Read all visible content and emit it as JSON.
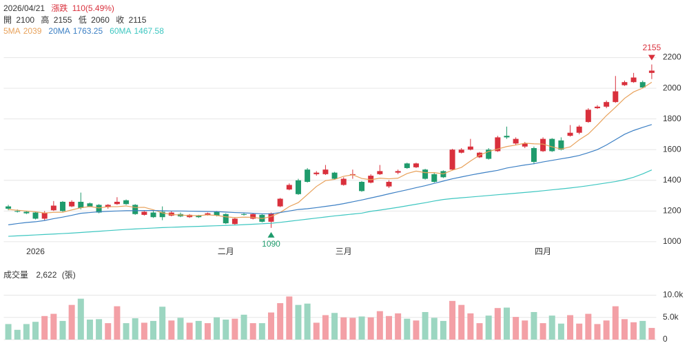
{
  "header": {
    "date": "2026/04/21",
    "change_label": "漲跌",
    "change": "110(5.49%)",
    "ohlc_labels": [
      "開",
      "高",
      "低",
      "收"
    ]
  },
  "chart_data": [
    {
      "type": "candlestick",
      "categories": [
        null,
        null,
        null,
        "2026",
        null,
        null,
        null,
        null,
        null,
        null,
        null,
        null,
        null,
        null,
        null,
        null,
        null,
        null,
        null,
        null,
        null,
        null,
        null,
        null,
        "二月",
        null,
        null,
        null,
        null,
        null,
        null,
        null,
        null,
        null,
        null,
        null,
        null,
        "三月",
        null,
        null,
        null,
        null,
        null,
        null,
        null,
        null,
        null,
        null,
        null,
        null,
        null,
        null,
        null,
        null,
        null,
        null,
        null,
        null,
        null,
        "四月",
        null,
        null,
        null,
        null,
        null,
        null,
        null,
        null,
        null,
        null,
        null,
        null
      ],
      "open": [
        1230,
        1200,
        1195,
        1190,
        1150,
        1205,
        1260,
        1230,
        1260,
        1250,
        1240,
        1225,
        1245,
        1270,
        1240,
        1175,
        1190,
        1195,
        1170,
        1180,
        1160,
        1170,
        1175,
        1195,
        1180,
        1115,
        1180,
        1150,
        1175,
        1130,
        1230,
        1340,
        1400,
        1470,
        1440,
        1440,
        1450,
        1370,
        1435,
        1390,
        1385,
        1440,
        1360,
        1450,
        1510,
        1485,
        1470,
        1440,
        1460,
        1470,
        1580,
        1600,
        1550,
        1600,
        1590,
        1690,
        1640,
        1620,
        1610,
        1590,
        1670,
        1660,
        1690,
        1710,
        1780,
        1870,
        1880,
        1910,
        2020,
        2040,
        2040,
        2100
      ],
      "high": [
        1240,
        1210,
        1200,
        1195,
        1200,
        1265,
        1265,
        1270,
        1320,
        1255,
        1245,
        1245,
        1290,
        1275,
        1245,
        1200,
        1200,
        1230,
        1200,
        1190,
        1180,
        1175,
        1190,
        1200,
        1185,
        1155,
        1190,
        1185,
        1180,
        1190,
        1285,
        1380,
        1410,
        1480,
        1460,
        1500,
        1455,
        1420,
        1470,
        1395,
        1440,
        1500,
        1400,
        1470,
        1515,
        1515,
        1475,
        1450,
        1465,
        1605,
        1610,
        1670,
        1585,
        1610,
        1690,
        1750,
        1680,
        1650,
        1620,
        1680,
        1675,
        1680,
        1760,
        1760,
        1870,
        1890,
        1920,
        2080,
        2050,
        2100,
        2050,
        2155
      ],
      "low": [
        1205,
        1190,
        1180,
        1145,
        1140,
        1200,
        1195,
        1225,
        1210,
        1225,
        1185,
        1215,
        1240,
        1240,
        1175,
        1170,
        1155,
        1140,
        1165,
        1160,
        1155,
        1155,
        1170,
        1165,
        1115,
        1110,
        1170,
        1145,
        1125,
        1090,
        1225,
        1335,
        1305,
        1385,
        1430,
        1435,
        1405,
        1365,
        1410,
        1325,
        1380,
        1435,
        1350,
        1440,
        1475,
        1480,
        1405,
        1385,
        1415,
        1465,
        1575,
        1595,
        1545,
        1535,
        1585,
        1670,
        1630,
        1610,
        1505,
        1585,
        1585,
        1595,
        1685,
        1700,
        1775,
        1865,
        1870,
        1905,
        2015,
        2035,
        2000,
        2060
      ],
      "close": [
        1215,
        1195,
        1185,
        1150,
        1190,
        1235,
        1200,
        1260,
        1220,
        1230,
        1190,
        1240,
        1260,
        1245,
        1180,
        1195,
        1160,
        1160,
        1190,
        1165,
        1175,
        1160,
        1185,
        1170,
        1120,
        1150,
        1175,
        1180,
        1130,
        1185,
        1280,
        1370,
        1310,
        1390,
        1450,
        1470,
        1410,
        1410,
        1440,
        1330,
        1430,
        1460,
        1390,
        1460,
        1480,
        1510,
        1410,
        1390,
        1420,
        1600,
        1600,
        1620,
        1580,
        1540,
        1680,
        1680,
        1670,
        1640,
        1520,
        1670,
        1590,
        1600,
        1710,
        1750,
        1860,
        1880,
        1910,
        1980,
        2040,
        2070,
        2005,
        2115
      ],
      "up_color": "#d9303c",
      "down_color": "#1f9b6c",
      "series": [
        {
          "name": "5MA",
          "color": "#e8a15a",
          "values": [
            1210,
            1205,
            1200,
            1195,
            1187,
            1191,
            1192,
            1207,
            1221,
            1229,
            1220,
            1228,
            1228,
            1233,
            1223,
            1224,
            1208,
            1188,
            1177,
            1174,
            1170,
            1170,
            1175,
            1171,
            1162,
            1157,
            1160,
            1159,
            1151,
            1164,
            1190,
            1229,
            1255,
            1307,
            1360,
            1398,
            1406,
            1426,
            1436,
            1412,
            1404,
            1414,
            1410,
            1414,
            1444,
            1460,
            1450,
            1450,
            1442,
            1466,
            1484,
            1526,
            1564,
            1588,
            1604,
            1620,
            1630,
            1642,
            1638,
            1636,
            1618,
            1604,
            1618,
            1664,
            1702,
            1760,
            1822,
            1876,
            1934,
            1976,
            2001,
            2039
          ]
        },
        {
          "name": "20MA",
          "color": "#3b7fc4",
          "values": [
            1110,
            1118,
            1125,
            1130,
            1138,
            1150,
            1160,
            1172,
            1185,
            1190,
            1195,
            1198,
            1200,
            1202,
            1202,
            1203,
            1203,
            1202,
            1200,
            1200,
            1199,
            1198,
            1197,
            1196,
            1193,
            1190,
            1188,
            1185,
            1182,
            1182,
            1190,
            1200,
            1210,
            1215,
            1222,
            1230,
            1238,
            1248,
            1260,
            1272,
            1285,
            1298,
            1312,
            1325,
            1338,
            1352,
            1365,
            1380,
            1395,
            1410,
            1422,
            1434,
            1445,
            1455,
            1465,
            1480,
            1490,
            1500,
            1508,
            1520,
            1530,
            1540,
            1550,
            1562,
            1580,
            1600,
            1630,
            1665,
            1700,
            1725,
            1745,
            1763.25
          ]
        },
        {
          "name": "60MA",
          "color": "#3cc6c0",
          "values": [
            1035,
            1038,
            1041,
            1044,
            1047,
            1050,
            1053,
            1056,
            1060,
            1064,
            1068,
            1072,
            1076,
            1080,
            1083,
            1086,
            1089,
            1092,
            1094,
            1096,
            1098,
            1100,
            1102,
            1104,
            1106,
            1108,
            1111,
            1114,
            1117,
            1120,
            1126,
            1133,
            1140,
            1147,
            1154,
            1161,
            1168,
            1174,
            1180,
            1186,
            1198,
            1206,
            1215,
            1224,
            1234,
            1244,
            1254,
            1265,
            1275,
            1281,
            1286,
            1291,
            1296,
            1301,
            1306,
            1311,
            1316,
            1321,
            1326,
            1332,
            1338,
            1344,
            1350,
            1357,
            1365,
            1374,
            1383,
            1392,
            1404,
            1420,
            1442,
            1467.58
          ]
        }
      ],
      "annotations": [
        {
          "at": "high",
          "index": 71,
          "color": "#d9303c"
        },
        {
          "at": "low",
          "index": 29,
          "color": "#1f9b6c"
        }
      ],
      "ylim": [
        950,
        2225
      ],
      "yticks": [
        1000,
        1200,
        1400,
        1600,
        1800,
        2000,
        2200
      ],
      "grid": true
    },
    {
      "type": "bar",
      "title": "成交量",
      "unit": "(張)",
      "values": [
        3500,
        2200,
        3500,
        4000,
        5300,
        5800,
        4200,
        7800,
        9200,
        4500,
        4600,
        3700,
        7500,
        3700,
        4800,
        3800,
        4200,
        7400,
        4300,
        4900,
        3800,
        4200,
        3700,
        5000,
        4500,
        4700,
        5600,
        3700,
        3700,
        6100,
        8200,
        9700,
        7800,
        8100,
        3800,
        5500,
        6000,
        5000,
        4900,
        5200,
        5000,
        6400,
        5300,
        5900,
        4700,
        4300,
        6200,
        4900,
        4200,
        8700,
        7800,
        5900,
        3700,
        5400,
        7100,
        7200,
        5100,
        4300,
        6200,
        3700,
        5400,
        3600,
        5500,
        3600,
        5800,
        3500,
        4300,
        7500,
        4600,
        3900,
        4200,
        2622
      ],
      "value_labels": [
        null,
        null,
        null,
        null,
        null,
        null,
        null,
        null,
        null,
        null,
        null,
        null,
        null,
        null,
        null,
        null,
        null,
        null,
        null,
        null,
        null,
        null,
        null,
        null,
        null,
        null,
        null,
        null,
        null,
        null,
        null,
        null,
        null,
        null,
        null,
        null,
        null,
        null,
        null,
        null,
        null,
        null,
        null,
        null,
        null,
        null,
        null,
        null,
        null,
        null,
        null,
        null,
        null,
        null,
        null,
        null,
        null,
        null,
        null,
        null,
        null,
        null,
        null,
        null,
        null,
        null,
        null,
        null,
        null,
        null,
        null,
        "2,622"
      ],
      "up_color": "#f3a0a6",
      "down_color": "#9cd6c1",
      "ylim": [
        0,
        11000
      ],
      "yticks": [
        0,
        {
          "value": 5000,
          "label": "5.0k"
        },
        {
          "value": 10000,
          "label": "10.0k"
        }
      ],
      "grid": true
    }
  ]
}
